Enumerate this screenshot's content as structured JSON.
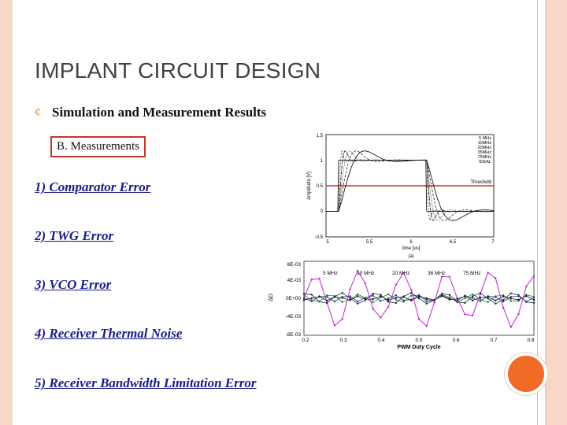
{
  "slide": {
    "title": "IMPLANT  CIRCUIT DESIGN",
    "bullet": "Simulation and Measurement Results",
    "section_box": "B. Measurements",
    "items": [
      "1) Comparator Error",
      "2) TWG Error",
      "3) VCO Error",
      "4) Receiver Thermal Noise",
      "5) Receiver Bandwidth Limitation Error"
    ]
  },
  "colors": {
    "accent": "#f06a28",
    "frame": "#f7d8c8",
    "item_text": "#1a1a8c",
    "box_border": "#c0392b"
  },
  "chart_data": [
    {
      "type": "line",
      "ylabel": "Amplitude [V]",
      "xlabel": "time [us]",
      "caption": "(a)",
      "x_ticks": [
        "5",
        "5.5",
        "6",
        "6.5",
        "7"
      ],
      "y_ticks": [
        "1.5",
        "1",
        "0.5",
        "0",
        "-0.5"
      ],
      "xlim": [
        5,
        7
      ],
      "ylim": [
        -0.5,
        1.5
      ],
      "legend": [
        "5 MHz",
        "10MHz",
        "20MHz",
        "35MHz",
        "75MHz",
        "IDEAL"
      ],
      "legend_position": "top-right",
      "annotation": "Threshold",
      "threshold": 0.5
    },
    {
      "type": "line",
      "ylabel": "ΔD",
      "xlabel": "PWM Duty Cycle",
      "x_ticks": [
        "0.2",
        "0.3",
        "0.4",
        "0.5",
        "0.6",
        "0.7",
        "0.8"
      ],
      "y_ticks": [
        "8E-03",
        "4E-03",
        "0E+00",
        "-4E-03",
        "-8E-03"
      ],
      "xlim": [
        0.2,
        0.8
      ],
      "ylim": [
        -0.008,
        0.008
      ],
      "legend": [
        "5 MHz",
        "10 MHz",
        "20 MHz",
        "36 MHz",
        "75 MHz"
      ],
      "legend_position": "top"
    }
  ]
}
